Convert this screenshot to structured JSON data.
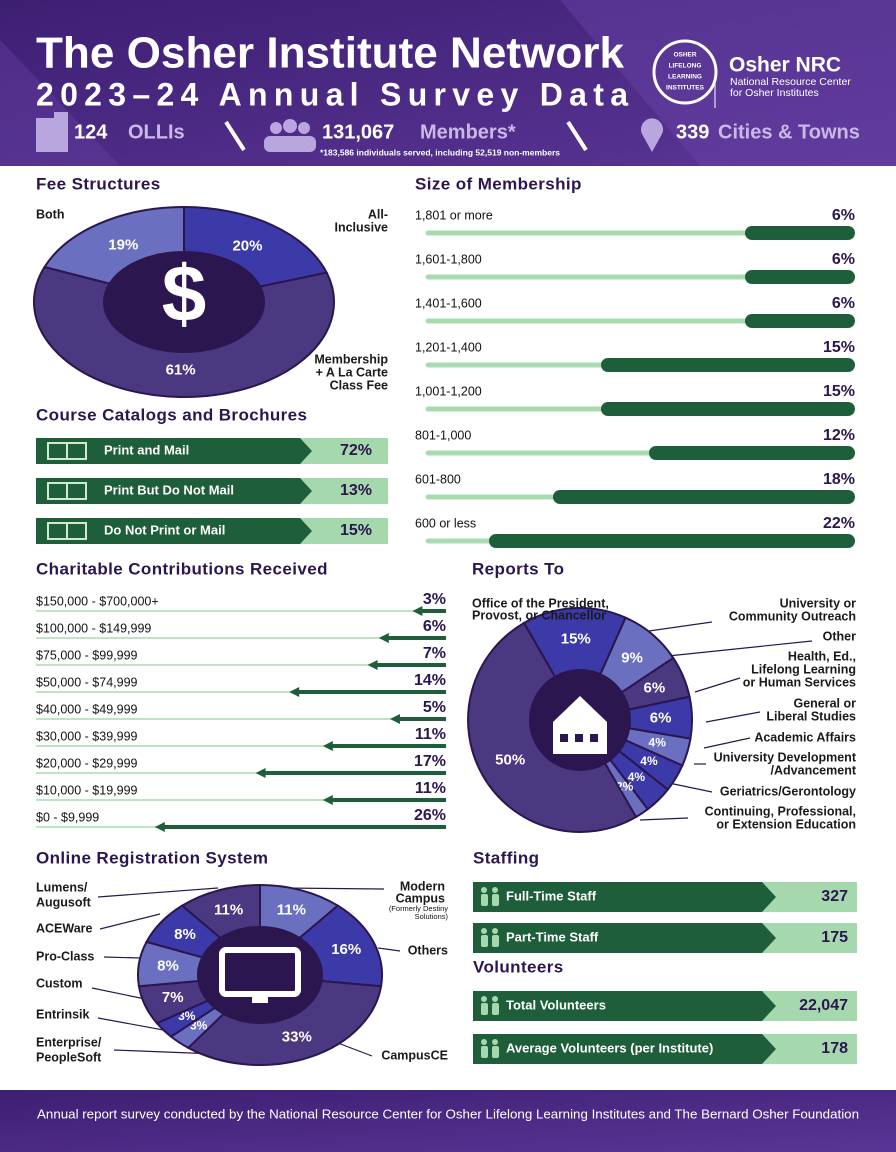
{
  "header": {
    "title": "The Osher Institute Network",
    "subtitle": "2023–24 Annual Survey Data",
    "stats": [
      {
        "number": "124",
        "label": "OLLIs"
      },
      {
        "number": "131,067",
        "label": "Members*"
      },
      {
        "number": "339",
        "label": "Cities & Towns"
      }
    ],
    "note": "*183,586 individuals served, including 52,519 non-members",
    "logo": {
      "badge": [
        "OSHER",
        "LIFELONG",
        "LEARNING",
        "INSTITUTES"
      ],
      "name": "Osher NRC",
      "desc": [
        "National Resource Center",
        "for Osher Institutes"
      ]
    }
  },
  "fee_structures": {
    "title": "Fee Structures",
    "segments": [
      {
        "label": [
          "All-",
          "Inclusive"
        ],
        "value": 20,
        "value_label": "20%"
      },
      {
        "label": [
          "Membership",
          "+ A La Carte",
          "Class Fee"
        ],
        "value": 61,
        "value_label": "61%"
      },
      {
        "label": [
          "Both"
        ],
        "value": 19,
        "value_label": "19%"
      }
    ]
  },
  "course_catalogs": {
    "title": "Course Catalogs and Brochures",
    "rows": [
      {
        "label": "Print and Mail",
        "value": 72,
        "value_label": "72%"
      },
      {
        "label": "Print But Do Not Mail",
        "value": 13,
        "value_label": "13%"
      },
      {
        "label": "Do Not Print or Mail",
        "value": 15,
        "value_label": "15%"
      }
    ]
  },
  "size_of_membership": {
    "title": "Size of Membership",
    "rows": [
      {
        "label": "1,801 or more",
        "value": 6,
        "value_label": "6%"
      },
      {
        "label": "1,601-1,800",
        "value": 6,
        "value_label": "6%"
      },
      {
        "label": "1,401-1,600",
        "value": 6,
        "value_label": "6%"
      },
      {
        "label": "1,201-1,400",
        "value": 15,
        "value_label": "15%"
      },
      {
        "label": "1,001-1,200",
        "value": 15,
        "value_label": "15%"
      },
      {
        "label": "801-1,000",
        "value": 12,
        "value_label": "12%"
      },
      {
        "label": "601-800",
        "value": 18,
        "value_label": "18%"
      },
      {
        "label": "600 or less",
        "value": 22,
        "value_label": "22%"
      }
    ]
  },
  "charitable_contributions": {
    "title": "Charitable Contributions Received",
    "rows": [
      {
        "label": "$150,000 - $700,000+",
        "value": 3,
        "value_label": "3%"
      },
      {
        "label": "$100,000 - $149,999",
        "value": 6,
        "value_label": "6%"
      },
      {
        "label": "$75,000 - $99,999",
        "value": 7,
        "value_label": "7%"
      },
      {
        "label": "$50,000 - $74,999",
        "value": 14,
        "value_label": "14%"
      },
      {
        "label": "$40,000 - $49,999",
        "value": 5,
        "value_label": "5%"
      },
      {
        "label": "$30,000 - $39,999",
        "value": 11,
        "value_label": "11%"
      },
      {
        "label": "$20,000 - $29,999",
        "value": 17,
        "value_label": "17%"
      },
      {
        "label": "$10,000 - $19,999",
        "value": 11,
        "value_label": "11%"
      },
      {
        "label": "$0 - $9,999",
        "value": 26,
        "value_label": "26%"
      }
    ]
  },
  "reports_to": {
    "title": "Reports To",
    "segments": [
      {
        "label": [
          "Office of the President,",
          "Provost, or Chancellor"
        ],
        "value": 15,
        "value_label": "15%"
      },
      {
        "label": [
          "University or",
          "Community Outreach"
        ],
        "value": 9,
        "value_label": "9%"
      },
      {
        "label": [
          "Other"
        ],
        "value": 6,
        "value_label": "6%"
      },
      {
        "label": [
          "Health, Ed.,",
          "Lifelong Learning",
          "or Human Services"
        ],
        "value": 6,
        "value_label": "6%"
      },
      {
        "label": [
          "General or",
          "Liberal Studies"
        ],
        "value": 4,
        "value_label": "4%"
      },
      {
        "label": [
          "Academic Affairs"
        ],
        "value": 4,
        "value_label": "4%"
      },
      {
        "label": [
          "University Development",
          "/Advancement"
        ],
        "value": 4,
        "value_label": "4%"
      },
      {
        "label": [
          "Geriatrics/Gerontology"
        ],
        "value": 2,
        "value_label": "2%"
      },
      {
        "label": [
          "Continuing, Professional,",
          "or Extension Education"
        ],
        "value": 50,
        "value_label": "50%"
      }
    ]
  },
  "online_registration": {
    "title": "Online Registration System",
    "segments": [
      {
        "label": [
          "Modern",
          "Campus"
        ],
        "sublabel": [
          "(Formerly Destiny",
          "Solutions)"
        ],
        "value": 11,
        "value_label": "11%"
      },
      {
        "label": [
          "Others"
        ],
        "value": 16,
        "value_label": "16%"
      },
      {
        "label": [
          "CampusCE"
        ],
        "value": 33,
        "value_label": "33%"
      },
      {
        "label": [
          "Enterprise/",
          "PeopleSoft"
        ],
        "value": 3,
        "value_label": "3%"
      },
      {
        "label": [
          "Entrinsik"
        ],
        "value": 3,
        "value_label": "3%"
      },
      {
        "label": [
          "Custom"
        ],
        "value": 7,
        "value_label": "7%"
      },
      {
        "label": [
          "Pro-Class"
        ],
        "value": 8,
        "value_label": "8%"
      },
      {
        "label": [
          "ACEWare"
        ],
        "value": 8,
        "value_label": "8%"
      },
      {
        "label": [
          "Lumens/",
          "Augusoft"
        ],
        "value": 11,
        "value_label": "11%"
      }
    ]
  },
  "staffing": {
    "title": "Staffing",
    "rows": [
      {
        "label": "Full-Time Staff",
        "value": "327"
      },
      {
        "label": "Part-Time Staff",
        "value": "175"
      }
    ]
  },
  "volunteers": {
    "title": "Volunteers",
    "rows": [
      {
        "label": "Total Volunteers",
        "value": "22,047"
      },
      {
        "label": "Average Volunteers (per Institute)",
        "value": "178"
      }
    ]
  },
  "footer": "Annual report survey conducted by the National Resource Center for Osher Lifelong Learning Institutes and The Bernard Osher Foundation"
}
